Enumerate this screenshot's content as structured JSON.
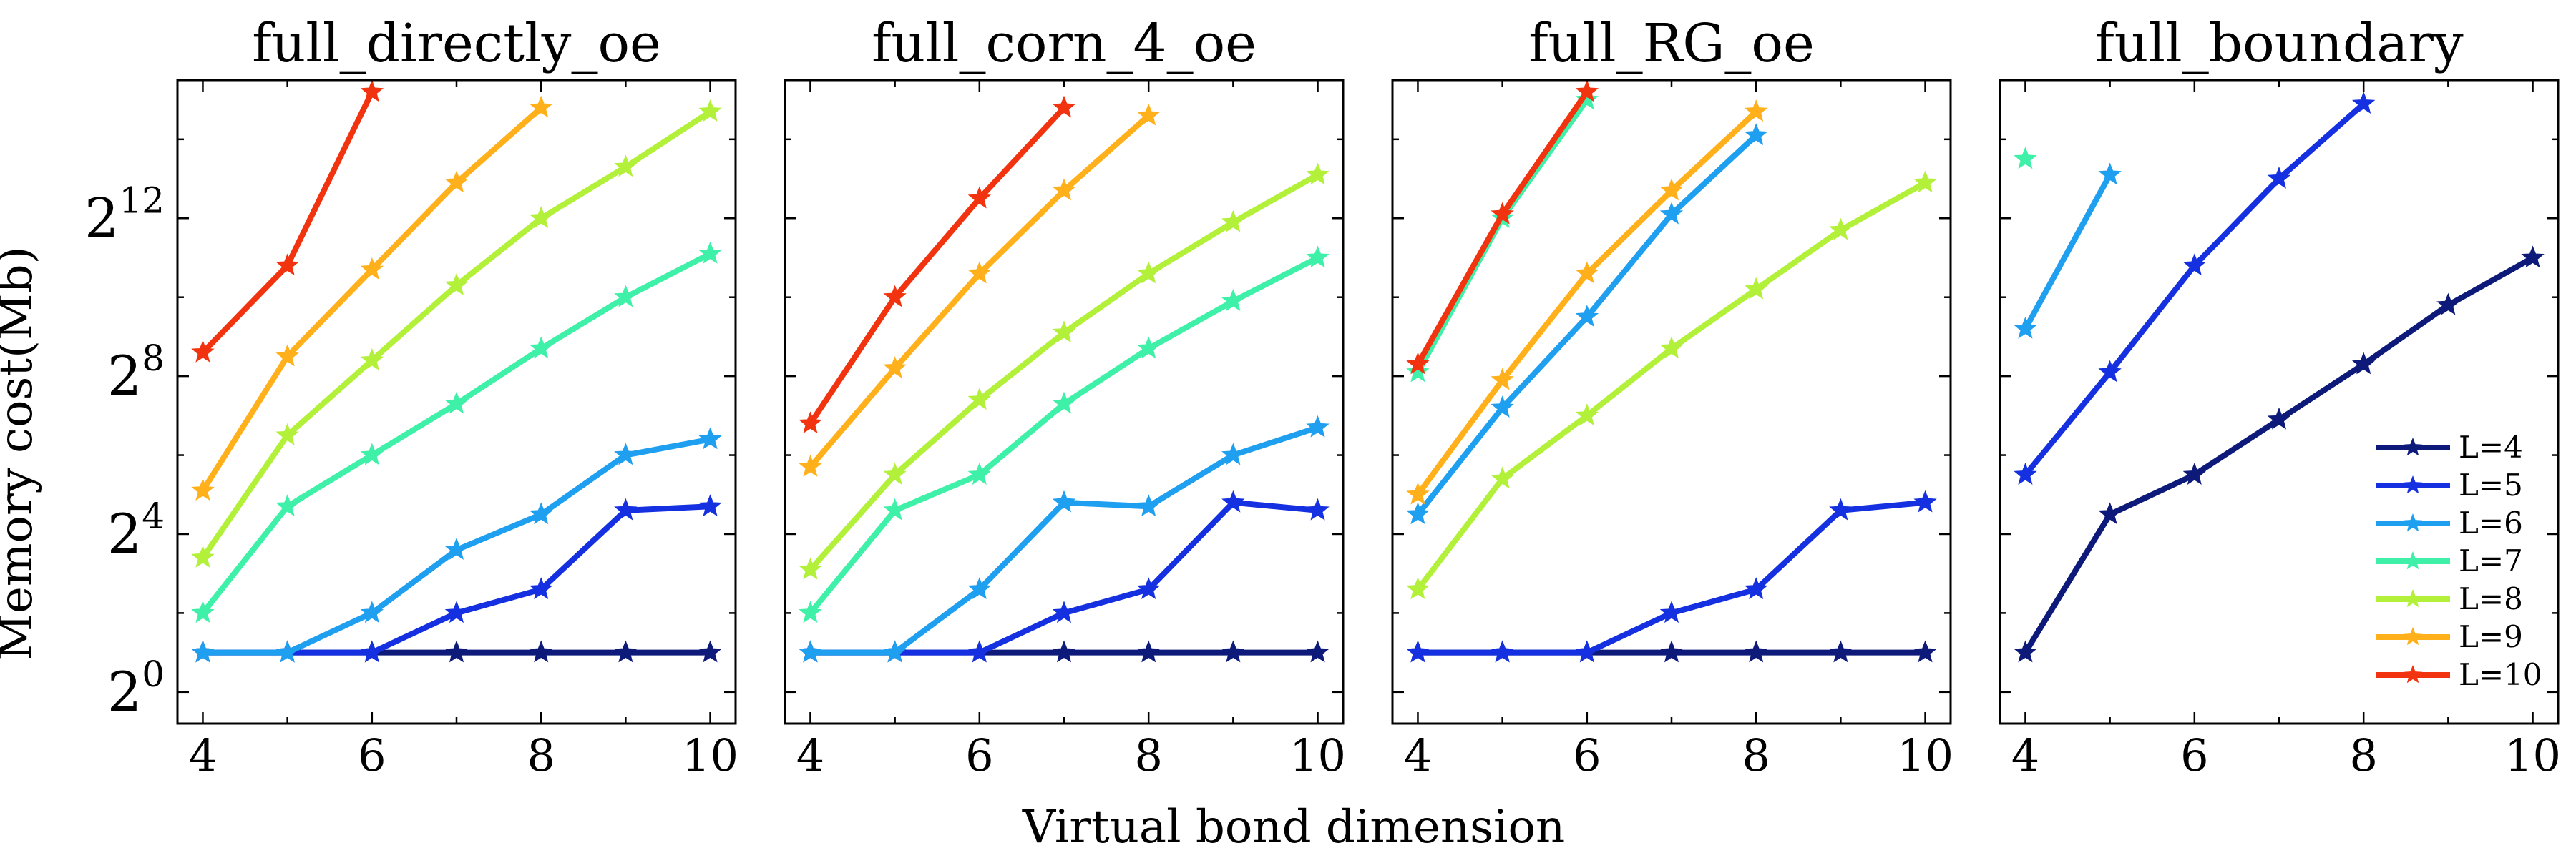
{
  "figure": {
    "xlabel": "Virtual bond dimension",
    "ylabel": "Memory cost(Mb)"
  },
  "series_styles": [
    {
      "name": "L=4",
      "color": "#0d1a7a"
    },
    {
      "name": "L=5",
      "color": "#1530e0"
    },
    {
      "name": "L=6",
      "color": "#1f9ff0"
    },
    {
      "name": "L=7",
      "color": "#3ff0a8"
    },
    {
      "name": "L=8",
      "color": "#b2f03a"
    },
    {
      "name": "L=9",
      "color": "#ffb01a"
    },
    {
      "name": "L=10",
      "color": "#f2330f"
    }
  ],
  "chart_data": [
    {
      "type": "line",
      "title": "full_directly_oe",
      "y_scale": "log2",
      "xlim": [
        3.7,
        10.3
      ],
      "ylim_log2": [
        -0.8,
        15.5
      ],
      "x_ticks": [
        4,
        6,
        8,
        10
      ],
      "y_ticks": [
        {
          "base": "2",
          "exp": "0",
          "value_log2": 0
        },
        {
          "base": "2",
          "exp": "4",
          "value_log2": 4
        },
        {
          "base": "2",
          "exp": "8",
          "value_log2": 8
        },
        {
          "base": "2",
          "exp": "12",
          "value_log2": 12
        }
      ],
      "series": [
        {
          "name": "L=4",
          "x": [
            4,
            5,
            6,
            7,
            8,
            9,
            10
          ],
          "y_log2": [
            1,
            1,
            1,
            1,
            1,
            1,
            1
          ]
        },
        {
          "name": "L=5",
          "x": [
            4,
            5,
            6,
            7,
            8,
            9,
            10
          ],
          "y_log2": [
            1,
            1,
            1,
            2,
            2.6,
            4.6,
            4.7
          ]
        },
        {
          "name": "L=6",
          "x": [
            4,
            5,
            6,
            7,
            8,
            9,
            10
          ],
          "y_log2": [
            1,
            1,
            2,
            3.6,
            4.5,
            6,
            6.4
          ]
        },
        {
          "name": "L=7",
          "x": [
            4,
            5,
            6,
            7,
            8,
            9,
            10
          ],
          "y_log2": [
            2,
            4.7,
            6,
            7.3,
            8.7,
            10,
            11.1
          ]
        },
        {
          "name": "L=8",
          "x": [
            4,
            5,
            6,
            7,
            8,
            9,
            10
          ],
          "y_log2": [
            3.4,
            6.5,
            8.4,
            10.3,
            12,
            13.3,
            14.7
          ]
        },
        {
          "name": "L=9",
          "x": [
            4,
            5,
            6,
            7,
            8
          ],
          "y_log2": [
            5.1,
            8.5,
            10.7,
            12.9,
            14.8
          ]
        },
        {
          "name": "L=10",
          "x": [
            4,
            5,
            6
          ],
          "y_log2": [
            8.6,
            10.8,
            15.2
          ]
        }
      ]
    },
    {
      "type": "line",
      "title": "full_corn_4_oe",
      "y_scale": "log2",
      "xlim": [
        3.7,
        10.3
      ],
      "ylim_log2": [
        -0.8,
        15.5
      ],
      "x_ticks": [
        4,
        6,
        8,
        10
      ],
      "y_ticks": [],
      "series": [
        {
          "name": "L=4",
          "x": [
            4,
            5,
            6,
            7,
            8,
            9,
            10
          ],
          "y_log2": [
            1,
            1,
            1,
            1,
            1,
            1,
            1
          ]
        },
        {
          "name": "L=5",
          "x": [
            4,
            5,
            6,
            7,
            8,
            9,
            10
          ],
          "y_log2": [
            1,
            1,
            1,
            2,
            2.6,
            4.8,
            4.6
          ]
        },
        {
          "name": "L=6",
          "x": [
            4,
            5,
            6,
            7,
            8,
            9,
            10
          ],
          "y_log2": [
            1,
            1,
            2.6,
            4.8,
            4.7,
            6,
            6.7
          ]
        },
        {
          "name": "L=7",
          "x": [
            4,
            5,
            6,
            7,
            8,
            9,
            10
          ],
          "y_log2": [
            2,
            4.6,
            5.5,
            7.3,
            8.7,
            9.9,
            11
          ]
        },
        {
          "name": "L=8",
          "x": [
            4,
            5,
            6,
            7,
            8,
            9,
            10
          ],
          "y_log2": [
            3.1,
            5.5,
            7.4,
            9.1,
            10.6,
            11.9,
            13.1
          ]
        },
        {
          "name": "L=9",
          "x": [
            4,
            5,
            6,
            7,
            8
          ],
          "y_log2": [
            5.7,
            8.2,
            10.6,
            12.7,
            14.6
          ]
        },
        {
          "name": "L=10",
          "x": [
            4,
            5,
            6,
            7
          ],
          "y_log2": [
            6.8,
            10,
            12.5,
            14.8
          ]
        }
      ]
    },
    {
      "type": "line",
      "title": "full_RG_oe",
      "y_scale": "log2",
      "xlim": [
        3.7,
        10.3
      ],
      "ylim_log2": [
        -0.8,
        15.5
      ],
      "x_ticks": [
        4,
        6,
        8,
        10
      ],
      "y_ticks": [],
      "series": [
        {
          "name": "L=4",
          "x": [
            4,
            5,
            6,
            7,
            8,
            9,
            10
          ],
          "y_log2": [
            1,
            1,
            1,
            1,
            1,
            1,
            1
          ]
        },
        {
          "name": "L=5",
          "x": [
            4,
            5,
            6,
            7,
            8,
            9,
            10
          ],
          "y_log2": [
            1,
            1,
            1,
            2,
            2.6,
            4.6,
            4.8
          ]
        },
        {
          "name": "L=6",
          "x": [
            4,
            5,
            6,
            7,
            8
          ],
          "y_log2": [
            4.5,
            7.2,
            9.5,
            12.1,
            14.1
          ]
        },
        {
          "name": "L=7",
          "x": [
            4,
            5,
            6
          ],
          "y_log2": [
            8.1,
            12,
            15
          ]
        },
        {
          "name": "L=8",
          "x": [
            4,
            5,
            6,
            7,
            8,
            9,
            10
          ],
          "y_log2": [
            2.6,
            5.4,
            7,
            8.7,
            10.2,
            11.7,
            12.9
          ]
        },
        {
          "name": "L=9",
          "x": [
            4,
            5,
            6,
            7,
            8
          ],
          "y_log2": [
            5,
            7.9,
            10.6,
            12.7,
            14.7
          ]
        },
        {
          "name": "L=10",
          "x": [
            4,
            5,
            6
          ],
          "y_log2": [
            8.3,
            12.1,
            15.2
          ]
        }
      ]
    },
    {
      "type": "line",
      "title": "full_boundary",
      "y_scale": "log2",
      "xlim": [
        3.7,
        10.3
      ],
      "ylim_log2": [
        -0.8,
        15.5
      ],
      "x_ticks": [
        4,
        6,
        8,
        10
      ],
      "y_ticks": [],
      "legend": {
        "position": "lower-right",
        "entries": [
          "L=4",
          "L=5",
          "L=6",
          "L=7",
          "L=8",
          "L=9",
          "L=10"
        ]
      },
      "series": [
        {
          "name": "L=4",
          "x": [
            4,
            5,
            6,
            7,
            8,
            9,
            10
          ],
          "y_log2": [
            1,
            4.5,
            5.5,
            6.9,
            8.3,
            9.8,
            11
          ]
        },
        {
          "name": "L=5",
          "x": [
            4,
            5,
            6,
            7,
            8
          ],
          "y_log2": [
            5.5,
            8.1,
            10.8,
            13,
            14.9
          ]
        },
        {
          "name": "L=6",
          "x": [
            4,
            5
          ],
          "y_log2": [
            9.2,
            13.1
          ]
        },
        {
          "name": "L=7",
          "x": [
            4
          ],
          "y_log2": [
            13.5
          ]
        }
      ]
    }
  ]
}
